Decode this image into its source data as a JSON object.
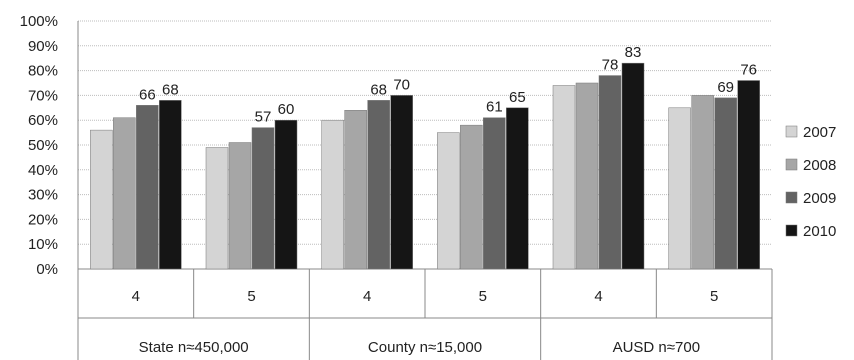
{
  "chart_data": {
    "type": "bar",
    "groups": [
      {
        "label": "State  n≈450,000",
        "categories": [
          "4",
          "5"
        ]
      },
      {
        "label": "County  n≈15,000",
        "categories": [
          "4",
          "5"
        ]
      },
      {
        "label": "AUSD  n≈700",
        "categories": [
          "4",
          "5"
        ]
      }
    ],
    "series": [
      {
        "name": "2007",
        "color": "#d4d4d4",
        "values": [
          56,
          49,
          60,
          55,
          74,
          65
        ],
        "labels": [
          "",
          "",
          "",
          "",
          "",
          ""
        ]
      },
      {
        "name": "2008",
        "color": "#a6a6a6",
        "values": [
          61,
          51,
          64,
          58,
          75,
          70
        ],
        "labels": [
          "",
          "",
          "",
          "",
          "",
          ""
        ]
      },
      {
        "name": "2009",
        "color": "#636363",
        "values": [
          66,
          57,
          68,
          61,
          78,
          69
        ],
        "labels": [
          "66",
          "57",
          "68",
          "61",
          "78",
          "69"
        ]
      },
      {
        "name": "2010",
        "color": "#151515",
        "values": [
          68,
          60,
          70,
          65,
          83,
          76
        ],
        "labels": [
          "68",
          "60",
          "70",
          "65",
          "83",
          "76"
        ]
      }
    ],
    "yticks": [
      "0%",
      "10%",
      "20%",
      "30%",
      "40%",
      "50%",
      "60%",
      "70%",
      "80%",
      "90%",
      "100%"
    ],
    "ylim": [
      0,
      100
    ],
    "grid": true,
    "legend": "right"
  }
}
